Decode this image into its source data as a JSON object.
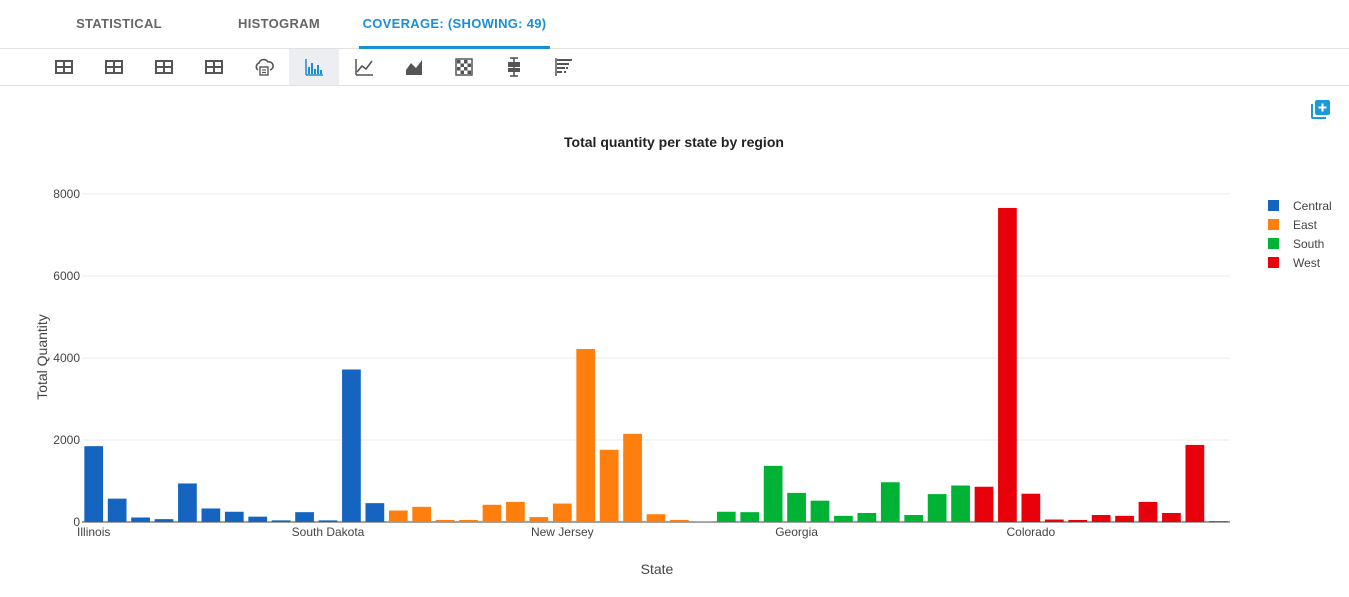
{
  "tabs": [
    {
      "label": "STATISTICAL",
      "active": false
    },
    {
      "label": "HISTOGRAM",
      "active": false
    },
    {
      "label": "COVERAGE: (SHOWING: 49)",
      "active": true
    }
  ],
  "toolbar": {
    "icons": [
      "table-icon",
      "table-icon",
      "table-icon",
      "table-icon",
      "cloud-print-icon",
      "bar-chart-icon",
      "line-chart-icon",
      "area-chart-icon",
      "heatmap-icon",
      "box-plot-icon",
      "histogram-icon"
    ],
    "active_index": 5,
    "accent": "#1a8fd6"
  },
  "chart_data": {
    "type": "bar",
    "title": "Total quantity per state by region",
    "xlabel": "State",
    "ylabel": "Total Quantity",
    "ylim": [
      0,
      8000
    ],
    "yticks": [
      0,
      2000,
      4000,
      6000,
      8000
    ],
    "xtick_labels": [
      {
        "index": 0,
        "label": "Illinois"
      },
      {
        "index": 10,
        "label": "South Dakota"
      },
      {
        "index": 20,
        "label": "New Jersey"
      },
      {
        "index": 30,
        "label": "Georgia"
      },
      {
        "index": 40,
        "label": "Colorado"
      }
    ],
    "grid": true,
    "legend_position": "top-right",
    "series": [
      {
        "name": "Central",
        "color": "#1565c0",
        "start": 0,
        "values": [
          1850,
          570,
          110,
          70,
          940,
          330,
          250,
          130,
          40,
          240,
          40,
          3720,
          460
        ]
      },
      {
        "name": "East",
        "color": "#ff7f0e",
        "start": 13,
        "values": [
          280,
          370,
          50,
          50,
          420,
          490,
          120,
          450,
          4220,
          1760,
          2150,
          190,
          50,
          20
        ]
      },
      {
        "name": "South",
        "color": "#00b335",
        "start": 27,
        "values": [
          250,
          240,
          1370,
          710,
          520,
          150,
          220,
          970,
          170,
          680,
          890
        ]
      },
      {
        "name": "West",
        "color": "#e8000b",
        "start": 38,
        "values": [
          860,
          7660,
          690,
          60,
          50,
          170,
          150,
          490,
          220,
          1880,
          20
        ]
      }
    ]
  },
  "colors": {
    "grid": "#e8e8e8",
    "axis_text": "#444444",
    "title": "#222222"
  }
}
